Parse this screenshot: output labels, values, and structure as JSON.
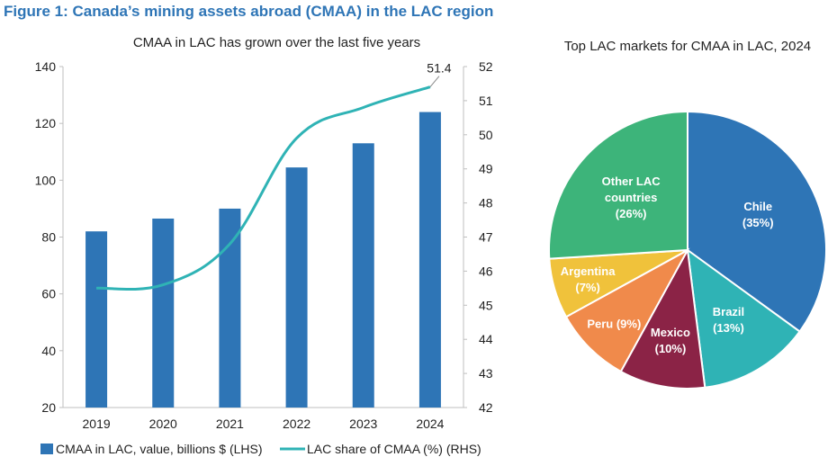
{
  "figure_title": "Figure 1: Canada’s mining assets abroad (CMAA) in the LAC region",
  "colors": {
    "bar": "#2e75b6",
    "line": "#2fb3b5",
    "title": "#2e75b6",
    "axis": "#bfbfbf"
  },
  "chart_data": [
    {
      "type": "bar",
      "title": "CMAA in LAC has grown over the last five years",
      "categories": [
        "2019",
        "2020",
        "2021",
        "2022",
        "2023",
        "2024"
      ],
      "y_left": {
        "lim": [
          20,
          140
        ],
        "ticks": [
          "20",
          "40",
          "60",
          "80",
          "100",
          "120",
          "140"
        ]
      },
      "y_right": {
        "lim": [
          42,
          52
        ],
        "ticks": [
          "42",
          "43",
          "44",
          "45",
          "46",
          "47",
          "48",
          "49",
          "50",
          "51",
          "52"
        ]
      },
      "grid": false,
      "legend_position": "bottom",
      "series": [
        {
          "name": "CMAA in LAC, value, billions $ (LHS)",
          "type": "bar",
          "axis": "left",
          "values": [
            82,
            86.5,
            90,
            104.5,
            113,
            124
          ]
        },
        {
          "name": "LAC share of CMAA (%) (RHS)",
          "type": "line",
          "axis": "right",
          "values": [
            45.5,
            45.6,
            46.8,
            49.9,
            50.8,
            51.4
          ]
        }
      ],
      "annotation": "51.4"
    },
    {
      "type": "pie",
      "title": "Top LAC markets for CMAA in LAC, 2024",
      "slices": [
        {
          "name": "Chile",
          "pct_label": "(35%)",
          "value": 35,
          "color": "#2e75b6"
        },
        {
          "name": "Brazil",
          "pct_label": "(13%)",
          "value": 13,
          "color": "#2fb3b5"
        },
        {
          "name": "Mexico",
          "pct_label": "(10%)",
          "value": 10,
          "color": "#8b2346"
        },
        {
          "name": "Peru (9%)",
          "pct_label": "",
          "value": 9,
          "color": "#f08a4b"
        },
        {
          "name": "Argentina",
          "pct_label": "(7%)",
          "value": 7,
          "color": "#f0c23b"
        },
        {
          "name": "Other LAC",
          "name2": "countries",
          "pct_label": "(26%)",
          "value": 26,
          "color": "#3db47a"
        }
      ]
    }
  ]
}
